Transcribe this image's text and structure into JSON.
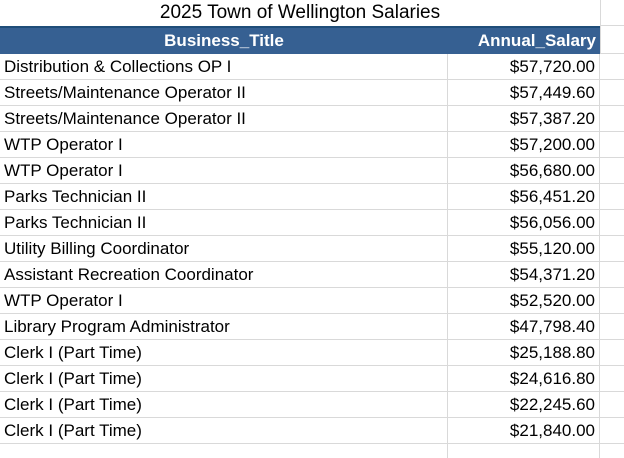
{
  "title": "2025 Town of Wellington Salaries",
  "columns": {
    "title": "Business_Title",
    "salary": "Annual_Salary"
  },
  "rows": [
    {
      "title": "Distribution & Collections OP I",
      "salary": "$57,720.00"
    },
    {
      "title": "Streets/Maintenance Operator II",
      "salary": "$57,449.60"
    },
    {
      "title": "Streets/Maintenance Operator II",
      "salary": "$57,387.20"
    },
    {
      "title": "WTP Operator I",
      "salary": "$57,200.00"
    },
    {
      "title": "WTP Operator I",
      "salary": "$56,680.00"
    },
    {
      "title": "Parks Technician II",
      "salary": "$56,451.20"
    },
    {
      "title": "Parks Technician II",
      "salary": "$56,056.00"
    },
    {
      "title": "Utility Billing Coordinator",
      "salary": "$55,120.00"
    },
    {
      "title": "Assistant Recreation Coordinator",
      "salary": "$54,371.20"
    },
    {
      "title": "WTP Operator I",
      "salary": "$52,520.00"
    },
    {
      "title": "Library Program Administrator",
      "salary": "$47,798.40"
    },
    {
      "title": "Clerk I (Part Time)",
      "salary": "$25,188.80"
    },
    {
      "title": "Clerk I (Part Time)",
      "salary": "$24,616.80"
    },
    {
      "title": "Clerk I (Part Time)",
      "salary": "$22,245.60"
    },
    {
      "title": "Clerk I (Part Time)",
      "salary": "$21,840.00"
    }
  ],
  "colors": {
    "header_bg": "#366092",
    "header_top_border": "#1F4E79",
    "header_text": "#FFFFFF",
    "gridline": "#D9D9D9",
    "text": "#000000",
    "background": "#FFFFFF"
  }
}
